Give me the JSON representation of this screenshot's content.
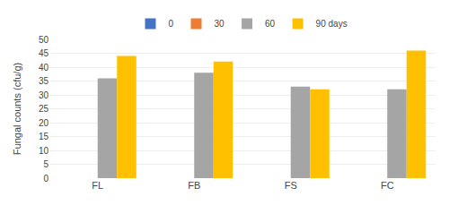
{
  "chart_data": {
    "type": "bar",
    "categories": [
      "FL",
      "FB",
      "FS",
      "FC"
    ],
    "series": [
      {
        "name": "0",
        "color": "#4472C4",
        "values": [
          0,
          0,
          0,
          0
        ]
      },
      {
        "name": "30",
        "color": "#ED7D31",
        "values": [
          0,
          0,
          0,
          0
        ]
      },
      {
        "name": "60",
        "color": "#A5A5A5",
        "values": [
          36,
          38,
          33,
          32
        ]
      },
      {
        "name": "90 days",
        "color": "#FFC000",
        "values": [
          44,
          42,
          32,
          46
        ]
      }
    ],
    "ylabel": "Fungal counts (cfu/g)",
    "ylim": [
      0,
      50
    ],
    "yticks": [
      0,
      5,
      10,
      15,
      20,
      25,
      30,
      35,
      40,
      45,
      50
    ],
    "grid": true,
    "legend": "top"
  }
}
